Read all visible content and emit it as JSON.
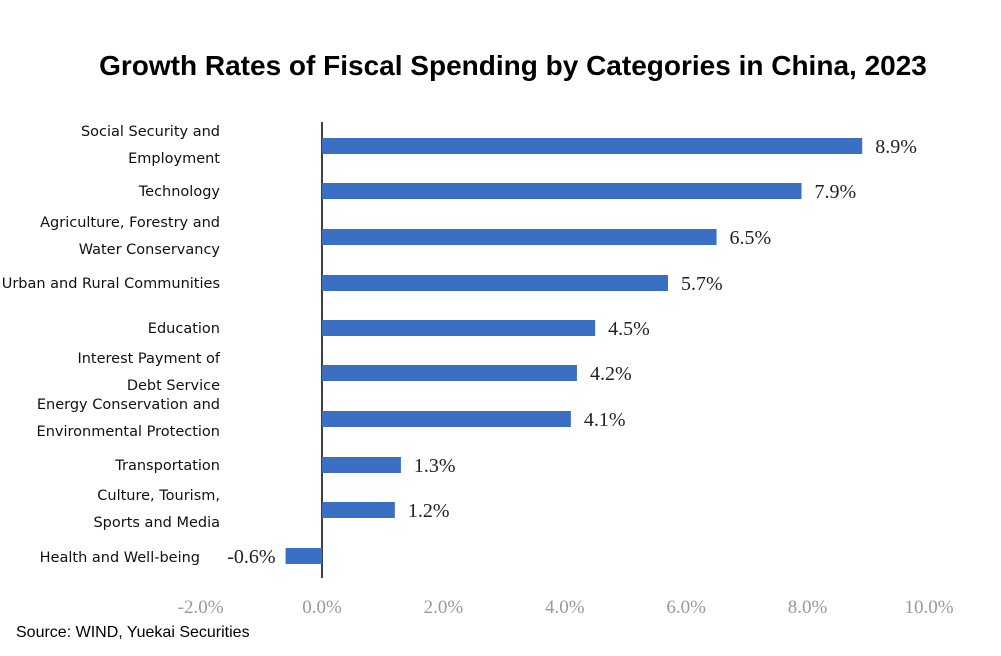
{
  "chart_data": {
    "type": "bar",
    "orientation": "horizontal",
    "title": "Growth Rates of Fiscal Spending by Categories in China, 2023",
    "source": "Source: WIND, Yuekai Securities",
    "categories": [
      [
        "Social Security and",
        "Employment"
      ],
      [
        "Technology"
      ],
      [
        "Agriculture, Forestry and",
        "Water Conservancy"
      ],
      [
        "Urban and Rural Communities"
      ],
      [
        "Education"
      ],
      [
        "Interest Payment of",
        "Debt Service"
      ],
      [
        "Energy Conservation and",
        "Environmental Protection"
      ],
      [
        "Transportation"
      ],
      [
        "Culture, Tourism,",
        "Sports and Media"
      ],
      [
        "Health and Well-being"
      ]
    ],
    "values": [
      8.9,
      7.9,
      6.5,
      5.7,
      4.5,
      4.2,
      4.1,
      1.3,
      1.2,
      -0.6
    ],
    "value_labels": [
      "8.9%",
      "7.9%",
      "6.5%",
      "5.7%",
      "4.5%",
      "4.2%",
      "4.1%",
      "1.3%",
      "1.2%",
      "-0.6%"
    ],
    "x_ticks": [
      -2,
      0,
      2,
      4,
      6,
      8,
      10
    ],
    "x_tick_labels": [
      "-2.0%",
      "0.0%",
      "2.0%",
      "4.0%",
      "6.0%",
      "8.0%",
      "10.0%"
    ],
    "xlim": [
      -2,
      10
    ],
    "bar_color": "#3a6fc4",
    "grid": false,
    "legend": "none"
  }
}
